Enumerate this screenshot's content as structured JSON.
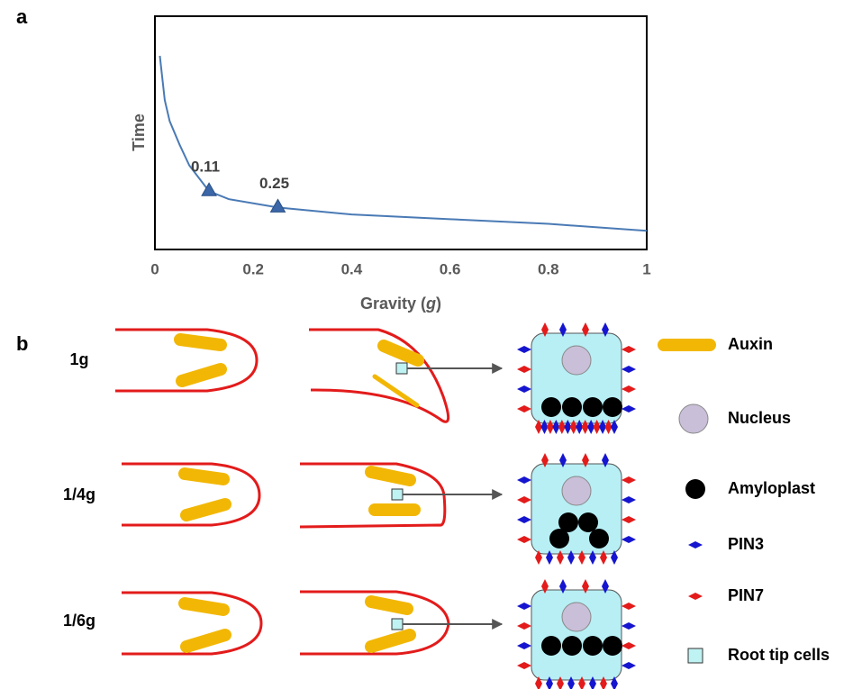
{
  "panel_labels": [
    "a",
    "b"
  ],
  "chart_data": {
    "type": "line",
    "x_label": [
      "Gravity (",
      "g",
      ")"
    ],
    "y_label": "Time",
    "x": [
      0.01,
      0.02,
      0.03,
      0.05,
      0.07,
      0.11,
      0.15,
      0.25,
      0.4,
      0.6,
      0.8,
      1
    ],
    "values": [
      83,
      64,
      55,
      45,
      36,
      25,
      21.6,
      18,
      15,
      13,
      11,
      8
    ],
    "color": "#4a7ab5",
    "marker_color": "#3b67a8",
    "xlim": [
      0,
      1
    ],
    "xticks": [
      0,
      0.2,
      0.4,
      0.6,
      0.8,
      1
    ],
    "ylim": [
      0,
      100
    ],
    "annotations": [
      {
        "x": 0.11,
        "y": 25,
        "label": "0.11"
      },
      {
        "x": 0.25,
        "y": 18,
        "label": "0.25"
      }
    ]
  },
  "diagram": {
    "rows": [
      "1g",
      "1/4g",
      "1/6g"
    ],
    "legend": [
      "Auxin",
      "Nucleus",
      "Amyloplast",
      "PIN3",
      "PIN7",
      "Root tip cells"
    ]
  }
}
